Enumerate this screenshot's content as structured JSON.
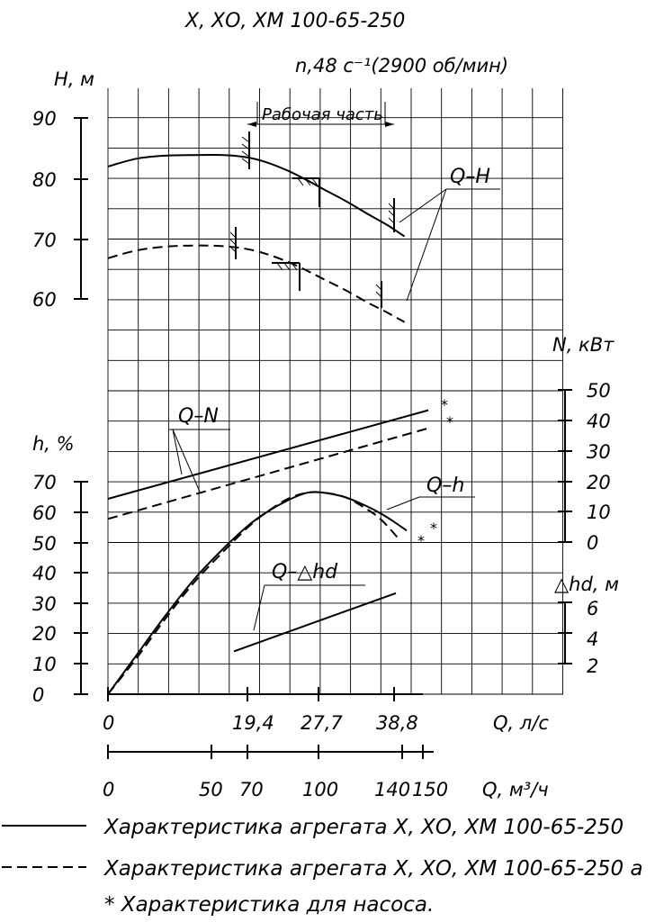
{
  "title": "Х, ХО, ХМ 100-65-250",
  "speed_label": "n,48 c⁻¹(2900 об/мин)",
  "working_zone_label": "Рабочая часть",
  "curve_labels": {
    "qh": "Q–H",
    "qn": "Q–N",
    "qeff": "Q–h",
    "qnpsh": "Q–△hd"
  },
  "asterisk": "*",
  "legend": {
    "solid": "Характеристика агрегата Х, ХО, ХМ 100-65-250",
    "dashed": "Характеристика агрегата Х, ХО, ХМ 100-65-250 а",
    "note": "* Характеристика для насоса."
  },
  "chart_data": {
    "type": "line",
    "axes": {
      "H": {
        "label": "H, м",
        "ticks": [
          "90",
          "80",
          "70",
          "60"
        ],
        "range": [
          60,
          90
        ]
      },
      "eff": {
        "label": "h, %",
        "ticks": [
          "70",
          "60",
          "50",
          "40",
          "30",
          "20",
          "10",
          "0"
        ],
        "range": [
          0,
          70
        ]
      },
      "N": {
        "label": "N, кВт",
        "ticks": [
          "50",
          "40",
          "30",
          "20",
          "10",
          "0"
        ],
        "range": [
          0,
          50
        ]
      },
      "npsh": {
        "label": "△hd, м",
        "ticks": [
          "6",
          "4",
          "2"
        ],
        "range": [
          2,
          6
        ]
      },
      "Q_ls": {
        "label": "Q, л/с",
        "ticks": [
          "0",
          "19,4",
          "27,7",
          "38,8"
        ],
        "range": [
          0,
          60
        ]
      },
      "Q_m3h": {
        "label": "Q, м³/ч",
        "ticks": [
          "0",
          "50",
          "70",
          "100",
          "140",
          "150"
        ],
        "range": [
          0,
          216
        ]
      }
    },
    "series": [
      {
        "name": "Q–H",
        "axis": "H",
        "style": "solid",
        "x": [
          0,
          4,
          8,
          12,
          16,
          19.4,
          22,
          25,
          27.7,
          30,
          33,
          36,
          38.8,
          41.2
        ],
        "y": [
          82.1,
          83.4,
          83.9,
          84.0,
          84.0,
          83.6,
          82.8,
          81.4,
          79.8,
          78.3,
          76.4,
          74.3,
          72.4,
          70.5
        ]
      },
      {
        "name": "Q–H",
        "axis": "H",
        "style": "dashed",
        "x": [
          0,
          4,
          8,
          12,
          16,
          19.4,
          22,
          25,
          27.7,
          30,
          33,
          36,
          38.8,
          41.2
        ],
        "y": [
          66.9,
          68.2,
          68.8,
          69.0,
          68.9,
          68.4,
          67.6,
          66.3,
          64.8,
          63.4,
          61.6,
          59.6,
          57.9,
          56.3
        ]
      },
      {
        "name": "Q–N",
        "axis": "N",
        "style": "solid",
        "x": [
          0,
          44.5
        ],
        "y": [
          14.2,
          43.3
        ]
      },
      {
        "name": "Q–N",
        "axis": "N",
        "style": "dashed",
        "x": [
          0,
          44.5
        ],
        "y": [
          7.6,
          37.4
        ]
      },
      {
        "name": "Q–h",
        "axis": "eff",
        "style": "solid",
        "x": [
          0,
          4,
          8,
          12,
          16,
          19.4,
          22,
          25,
          27.7,
          30,
          33,
          36,
          38,
          40,
          41.5
        ],
        "y": [
          0,
          13,
          26,
          38,
          48,
          55.5,
          60,
          64,
          66.5,
          66.5,
          65,
          62,
          59.5,
          56.5,
          54
        ]
      },
      {
        "name": "Q–h",
        "axis": "eff",
        "style": "dashed",
        "x": [
          0,
          4,
          8,
          12,
          16,
          19.4,
          22,
          25,
          27.7,
          30,
          33,
          36,
          38,
          40.5
        ],
        "y": [
          0,
          12,
          25,
          37,
          47,
          55,
          60,
          64.5,
          66.5,
          66.5,
          65,
          61,
          57.5,
          51
        ]
      },
      {
        "name": "Q–△hd",
        "axis": "npsh",
        "style": "solid",
        "x": [
          17.5,
          40
        ],
        "y": [
          2.8,
          6.6
        ]
      }
    ],
    "working_zone": {
      "from": 19.4,
      "to": 38.8,
      "units": "л/с"
    }
  }
}
